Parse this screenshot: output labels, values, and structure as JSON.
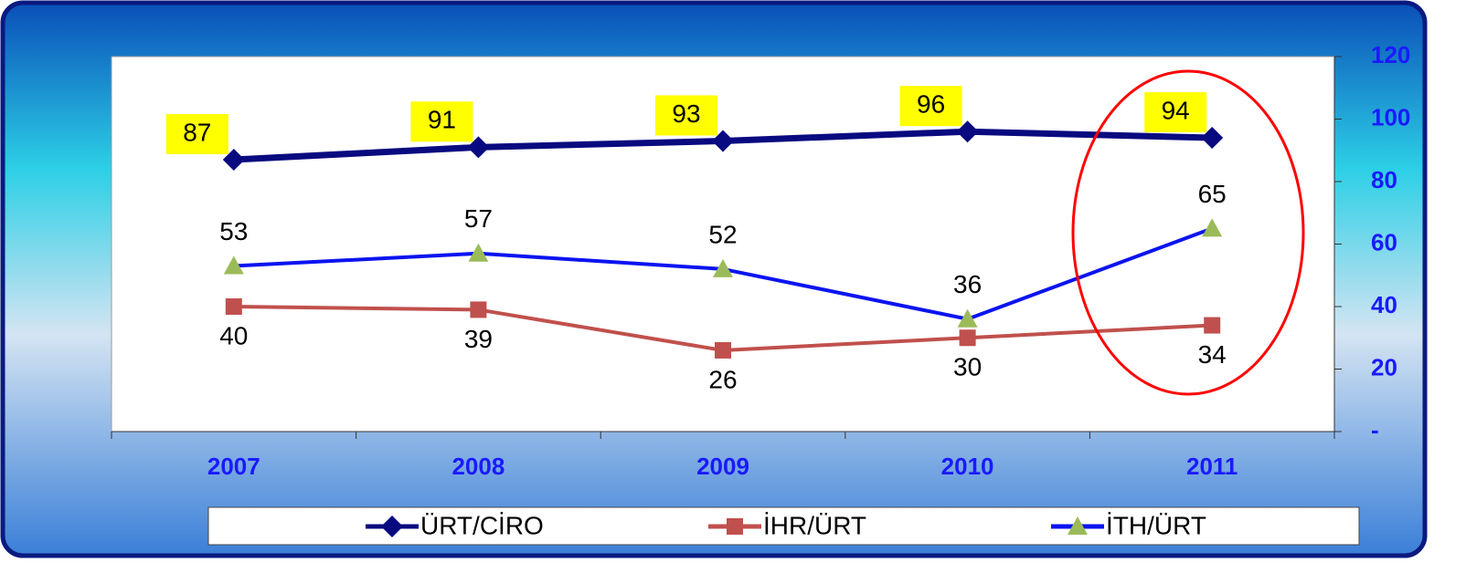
{
  "chart_data": {
    "type": "line",
    "categories": [
      "2007",
      "2008",
      "2009",
      "2010",
      "2011"
    ],
    "series": [
      {
        "name": "ÜRT/CİRO",
        "color": "#0a0a80",
        "marker": "diamond",
        "marker_color": "#0a0a80",
        "values": [
          87,
          91,
          93,
          96,
          94
        ]
      },
      {
        "name": "İHR/ÜRT",
        "color": "#c0504d",
        "marker": "square",
        "marker_color": "#c0504d",
        "values": [
          40,
          39,
          26,
          30,
          34
        ]
      },
      {
        "name": "İTH/ÜRT",
        "color": "#0a14f0",
        "marker": "triangle",
        "marker_color": "#9bbb59",
        "values": [
          53,
          57,
          52,
          36,
          65
        ]
      }
    ],
    "ylim": [
      0,
      120
    ],
    "yticks": [
      {
        "value": 0,
        "label": "-"
      },
      20,
      40,
      60,
      80,
      100,
      120
    ],
    "y_axis_side": "right",
    "grid": false,
    "legend": "bottom"
  }
}
